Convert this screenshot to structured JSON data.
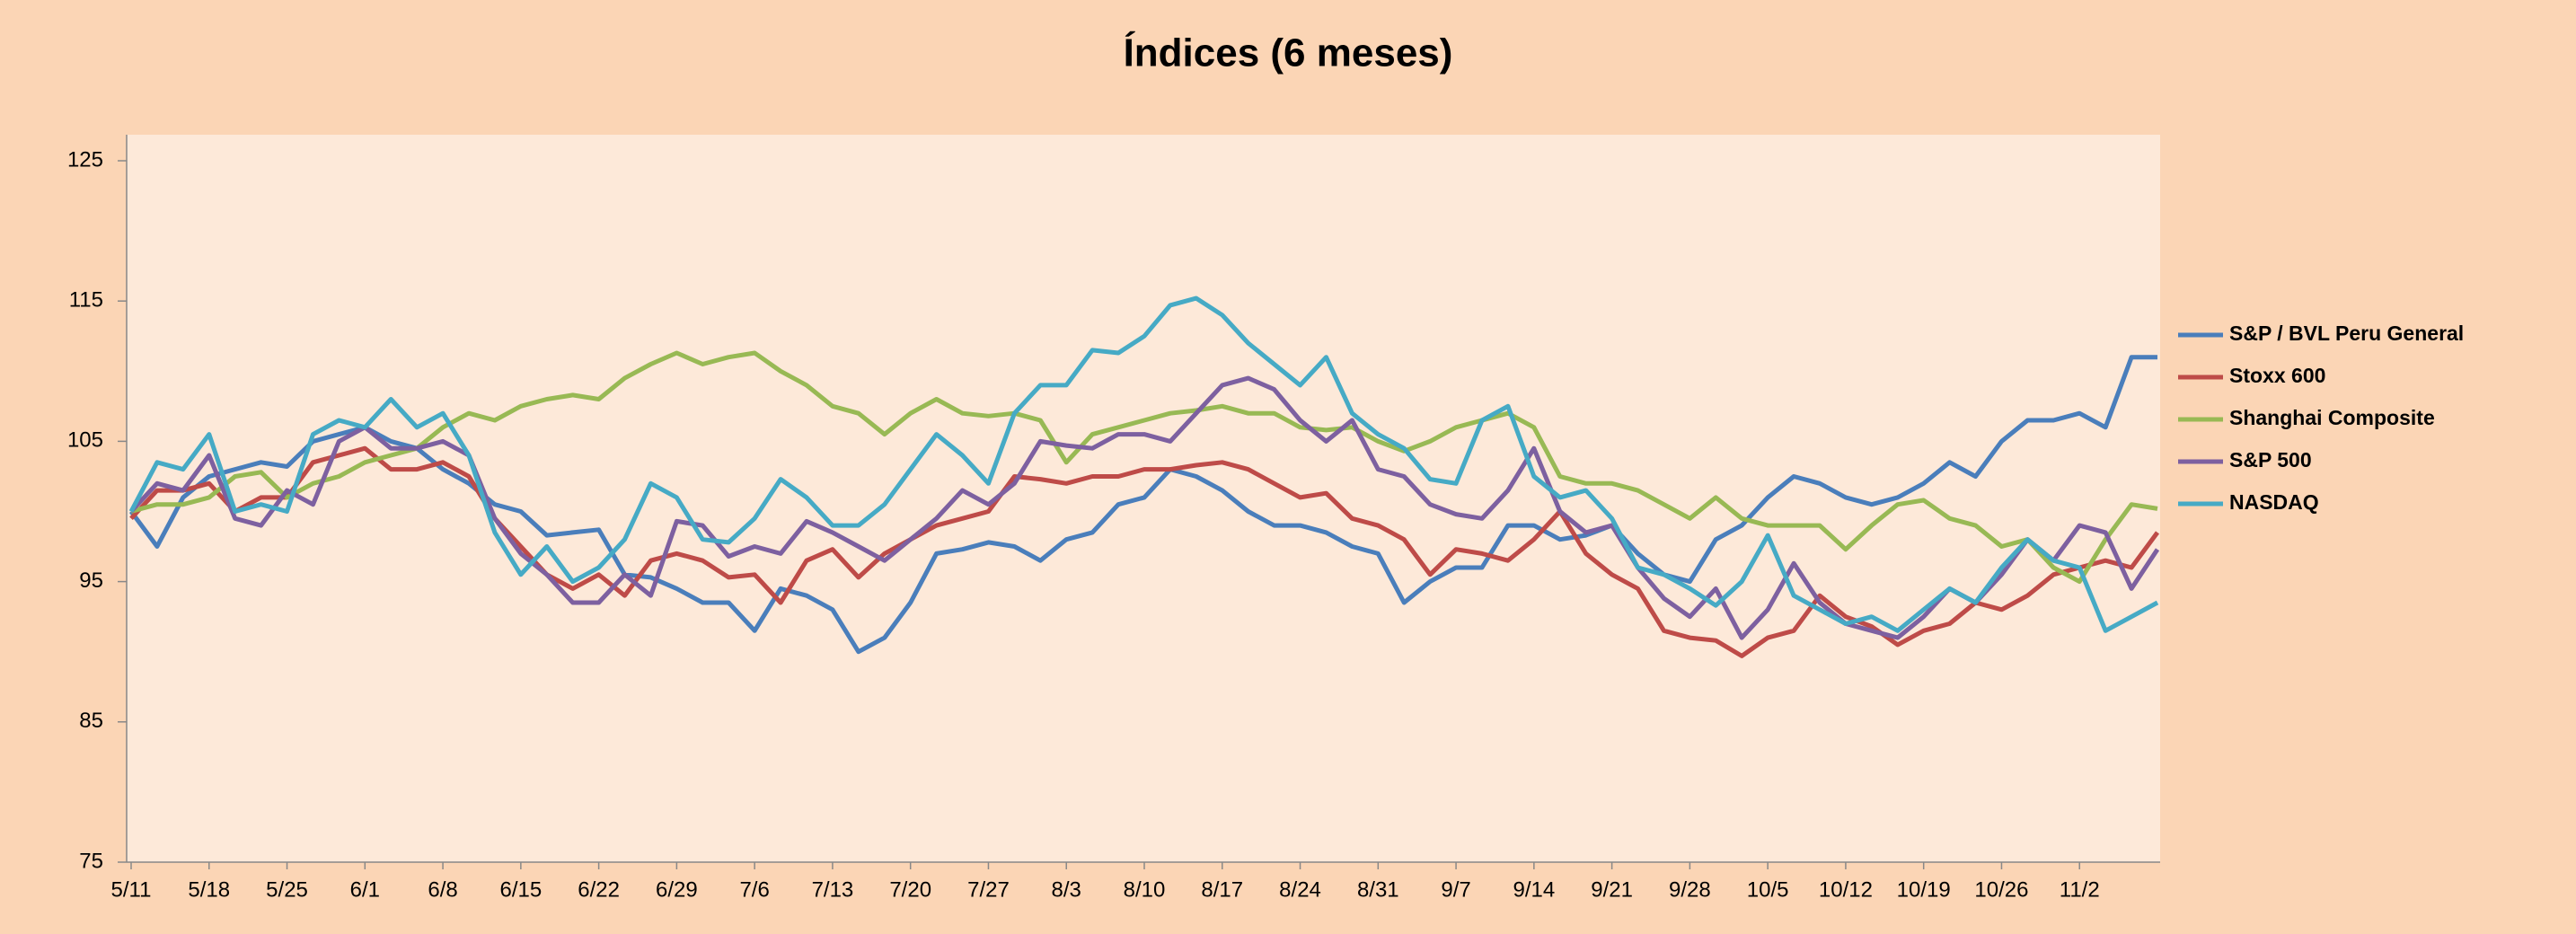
{
  "chart_data": {
    "type": "line",
    "title": "Índices (6 meses)",
    "categories": [
      "5/11",
      null,
      null,
      "5/18",
      null,
      null,
      "5/25",
      null,
      null,
      "6/1",
      null,
      null,
      "6/8",
      null,
      null,
      "6/15",
      null,
      null,
      "6/22",
      null,
      null,
      "6/29",
      null,
      null,
      "7/6",
      null,
      null,
      "7/13",
      null,
      null,
      "7/20",
      null,
      null,
      "7/27",
      null,
      null,
      "8/3",
      null,
      null,
      "8/10",
      null,
      null,
      "8/17",
      null,
      null,
      "8/24",
      null,
      null,
      "8/31",
      null,
      null,
      "9/7",
      null,
      null,
      "9/14",
      null,
      null,
      "9/21",
      null,
      null,
      "9/28",
      null,
      null,
      "10/5",
      null,
      null,
      "10/12",
      null,
      null,
      "10/19",
      null,
      null,
      "10/26",
      null,
      null,
      "11/2",
      null,
      null,
      null
    ],
    "ylim": [
      75,
      125
    ],
    "yticks": [
      75,
      85,
      95,
      105,
      115,
      125
    ],
    "grid": false,
    "legend": "right",
    "series": [
      {
        "name": "S&P / BVL Peru General",
        "color": "#4a7ebb",
        "values": [
          100,
          97.5,
          101,
          102.5,
          103,
          103.5,
          103.2,
          105,
          105.5,
          106,
          105,
          104.5,
          103,
          102,
          100.5,
          100,
          98.3,
          98.5,
          98.7,
          95.5,
          95.3,
          94.5,
          93.5,
          93.5,
          91.5,
          94.5,
          94,
          93,
          90,
          91,
          93.5,
          97,
          97.3,
          97.8,
          97.5,
          96.5,
          98,
          98.5,
          100.5,
          101,
          103,
          102.5,
          101.5,
          100,
          99,
          99,
          98.5,
          97.5,
          97,
          93.5,
          95,
          96,
          96,
          99,
          99,
          98,
          98.3,
          99,
          97,
          95.5,
          95,
          98,
          99,
          101,
          102.5,
          102,
          101,
          100.5,
          101,
          102,
          103.5,
          102.5,
          105,
          106.5,
          106.5,
          107,
          106,
          111,
          111
        ]
      },
      {
        "name": "Stoxx 600",
        "color": "#be4b48",
        "values": [
          99.5,
          101.5,
          101.5,
          102,
          100,
          101,
          101,
          103.5,
          104,
          104.5,
          103,
          103,
          103.5,
          102.5,
          99.5,
          97.5,
          95.5,
          94.5,
          95.5,
          94,
          96.5,
          97,
          96.5,
          95.3,
          95.5,
          93.5,
          96.5,
          97.3,
          95.3,
          97,
          98,
          99,
          99.5,
          100,
          102.5,
          102.3,
          102,
          102.5,
          102.5,
          103,
          103,
          103.3,
          103.5,
          103,
          102,
          101,
          101.3,
          99.5,
          99,
          98,
          95.5,
          97.3,
          97,
          96.5,
          98,
          100,
          97,
          95.5,
          94.5,
          91.5,
          91,
          90.8,
          89.7,
          91,
          91.5,
          94,
          92.5,
          91.8,
          90.5,
          91.5,
          92,
          93.5,
          93,
          94,
          95.5,
          96,
          96.5,
          96,
          98.5
        ]
      },
      {
        "name": "Shanghai Composite",
        "color": "#98b954",
        "values": [
          100,
          100.5,
          100.5,
          101,
          102.5,
          102.8,
          101,
          102,
          102.5,
          103.5,
          104,
          104.5,
          106,
          107,
          106.5,
          107.5,
          108,
          108.3,
          108,
          109.5,
          110.5,
          111.3,
          110.5,
          111,
          111.3,
          110,
          109,
          107.5,
          107,
          105.5,
          107,
          108,
          107,
          106.8,
          107,
          106.5,
          103.5,
          105.5,
          106,
          106.5,
          107,
          107.2,
          107.5,
          107,
          107,
          106,
          105.8,
          106,
          105,
          104.3,
          105,
          106,
          106.5,
          107,
          106,
          102.5,
          102,
          102,
          101.5,
          100.5,
          99.5,
          101,
          99.5,
          99,
          99,
          99,
          97.3,
          99,
          100.5,
          100.8,
          99.5,
          99,
          97.5,
          98,
          96,
          95,
          98,
          100.5,
          100.2
        ]
      },
      {
        "name": "S&P 500",
        "color": "#7d60a0",
        "values": [
          100,
          102,
          101.5,
          104,
          99.5,
          99,
          101.5,
          100.5,
          105,
          106,
          104.5,
          104.5,
          105,
          104,
          99.5,
          97,
          95.5,
          93.5,
          93.5,
          95.5,
          94,
          99.3,
          99,
          96.8,
          97.5,
          97,
          99.3,
          98.5,
          97.5,
          96.5,
          98,
          99.5,
          101.5,
          100.5,
          102,
          105,
          104.7,
          104.5,
          105.5,
          105.5,
          105,
          107,
          109,
          109.5,
          108.7,
          106.5,
          105,
          106.5,
          103,
          102.5,
          100.5,
          99.8,
          99.5,
          101.5,
          104.5,
          100,
          98.5,
          99,
          96,
          93.8,
          92.5,
          94.5,
          91,
          93,
          96.3,
          93.5,
          92,
          91.5,
          91,
          92.5,
          94.5,
          93.5,
          95.5,
          98,
          96.5,
          99,
          98.5,
          94.5,
          97.3
        ]
      },
      {
        "name": "NASDAQ",
        "color": "#46aac5",
        "values": [
          100,
          103.5,
          103,
          105.5,
          100,
          100.5,
          100,
          105.5,
          106.5,
          106,
          108,
          106,
          107,
          104,
          98.5,
          95.5,
          97.5,
          95,
          96,
          98,
          102,
          101,
          98,
          97.8,
          99.5,
          102.3,
          101,
          99,
          99,
          100.5,
          103,
          105.5,
          104,
          102,
          107,
          109,
          109,
          111.5,
          111.3,
          112.5,
          114.7,
          115.2,
          114,
          112,
          110.5,
          109,
          111,
          107,
          105.5,
          104.5,
          102.3,
          102,
          106.5,
          107.5,
          102.5,
          101,
          101.5,
          99.5,
          96,
          95.5,
          94.5,
          93.3,
          95,
          98.3,
          94,
          93,
          92,
          92.5,
          91.5,
          93,
          94.5,
          93.5,
          96,
          98,
          96.5,
          96,
          91.5,
          92.5,
          93.5
        ]
      }
    ]
  }
}
